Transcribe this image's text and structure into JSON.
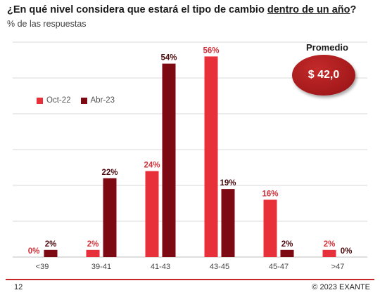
{
  "title": {
    "prefix": "¿En qué nivel considera que estará el tipo de cambio ",
    "underlined": "dentro de un año",
    "suffix": "?"
  },
  "subtitle": "% de las respuestas",
  "promedio": {
    "label": "Promedio",
    "value": "$ 42,0"
  },
  "footer": {
    "page": "12",
    "copyright": "© 2023 EXANTE"
  },
  "colors": {
    "oct22": "#e8303a",
    "abr23": "#7d0a12",
    "grid": "#d9d9d9",
    "accent": "#c7242c"
  },
  "chart_data": {
    "type": "bar",
    "categories": [
      "<39",
      "39-41",
      "41-43",
      "43-45",
      "45-47",
      ">47"
    ],
    "series": [
      {
        "name": "Oct-22",
        "values": [
          0,
          2,
          24,
          56,
          16,
          2
        ],
        "labels": [
          "0%",
          "2%",
          "24%",
          "56%",
          "16%",
          "2%"
        ]
      },
      {
        "name": "Abr-23",
        "values": [
          2,
          22,
          54,
          19,
          2,
          0
        ],
        "labels": [
          "2%",
          "22%",
          "54%",
          "19%",
          "2%",
          "0%"
        ]
      }
    ],
    "ylim": [
      0,
      60
    ],
    "grid": true,
    "legend": "top-left"
  }
}
